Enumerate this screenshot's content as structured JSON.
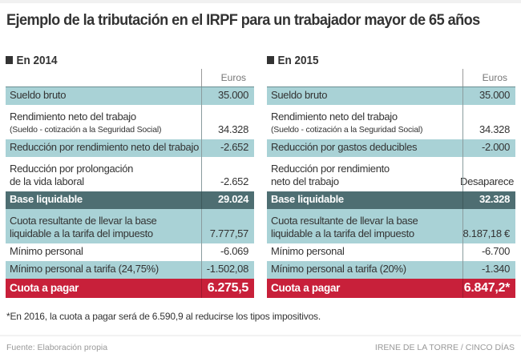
{
  "title": "Ejemplo de la tributación en el IRPF para un trabajador mayor de 65 años",
  "unit_label": "Euros",
  "tables": [
    {
      "heading": "En 2014",
      "rows": [
        {
          "label": "Sueldo bruto",
          "sub": "",
          "value": "35.000",
          "style": "blue"
        },
        {
          "label": "Rendimiento neto del trabajo",
          "sub": "(Sueldo - cotización a la Seguridad Social)",
          "value": "34.328",
          "style": "white"
        },
        {
          "label": "Reducción por rendimiento neto del trabajo",
          "sub": "",
          "value": "-2.652",
          "style": "blue"
        },
        {
          "label": "Reducción por prolongación",
          "label2": "de la vida laboral",
          "value": "-2.652",
          "style": "white"
        },
        {
          "label": "Base liquidable",
          "sub": "",
          "value": "29.024",
          "style": "dark"
        },
        {
          "label": "Cuota resultante de llevar la base",
          "label2": "liquidable a la tarifa del impuesto",
          "value": "7.777,57",
          "style": "blue"
        },
        {
          "label": "Mínimo personal",
          "sub": "",
          "value": "-6.069",
          "style": "white"
        },
        {
          "label": "Mínimo personal a tarifa (24,75%)",
          "sub": "",
          "value": "-1.502,08",
          "style": "blue"
        },
        {
          "label": "Cuota a pagar",
          "sub": "",
          "value": "6.275,5",
          "style": "red"
        }
      ]
    },
    {
      "heading": "En 2015",
      "rows": [
        {
          "label": "Sueldo bruto",
          "sub": "",
          "value": "35.000",
          "style": "blue"
        },
        {
          "label": "Rendimiento neto del trabajo",
          "sub": "(Sueldo - cotización a la Seguridad Social)",
          "value": "34.328",
          "style": "white"
        },
        {
          "label": "Reducción por gastos deducibles",
          "sub": "",
          "value": "-2.000",
          "style": "blue"
        },
        {
          "label": "Reducción por rendimiento",
          "label2": "neto del trabajo",
          "value": "Desaparece",
          "style": "white"
        },
        {
          "label": "Base liquidable",
          "sub": "",
          "value": "32.328",
          "style": "dark"
        },
        {
          "label": "Cuota resultante de llevar la base",
          "label2": "liquidable a la tarifa del impuesto",
          "value": "8.187,18 €",
          "style": "blue"
        },
        {
          "label": "Mínimo personal",
          "sub": "",
          "value": "-6.700",
          "style": "white"
        },
        {
          "label": "Mínimo personal a tarifa (20%)",
          "sub": "",
          "value": "-1.340",
          "style": "blue"
        },
        {
          "label": "Cuota a pagar",
          "sub": "",
          "value": "6.847,2*",
          "style": "red"
        }
      ]
    }
  ],
  "footnote": "*En 2016, la cuota a pagar será de 6.590,9 al reducirse los tipos impositivos.",
  "source": "Fuente: Elaboración propia",
  "credit": "IRENE DE LA TORRE / CINCO DÍAS"
}
